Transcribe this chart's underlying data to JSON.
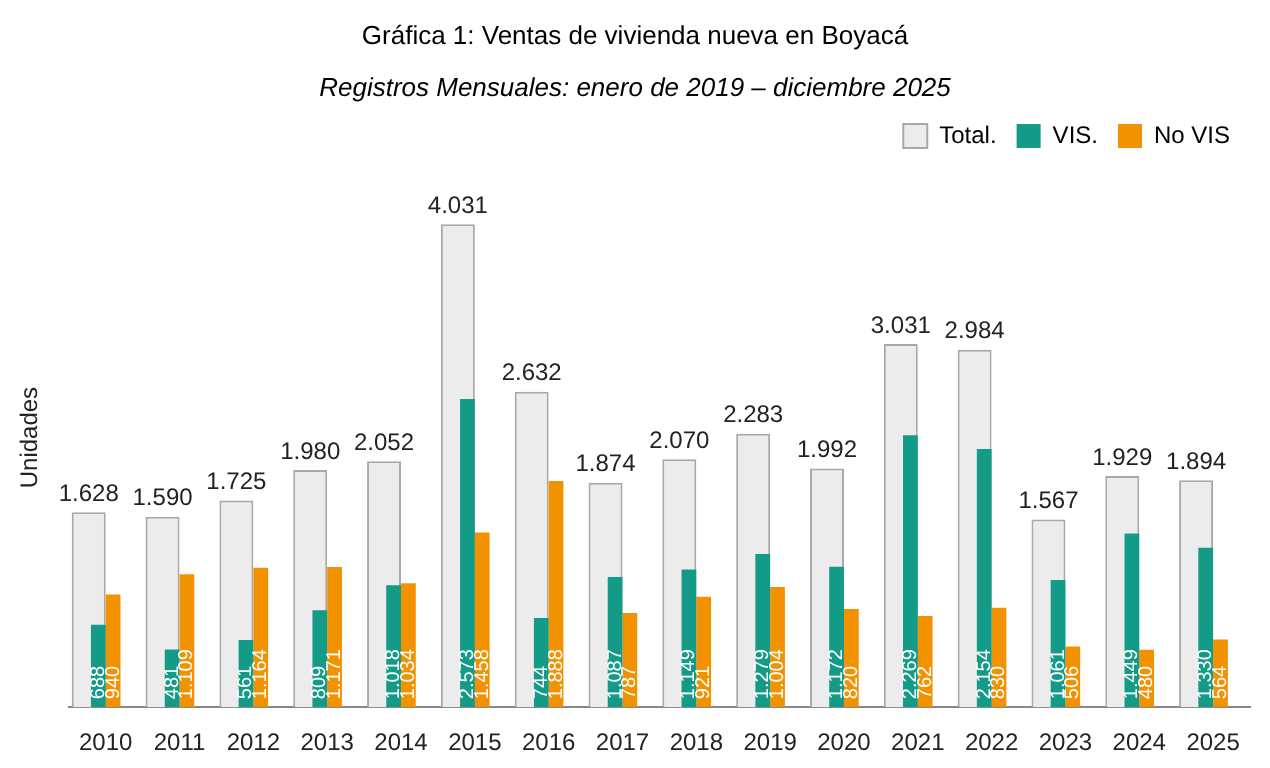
{
  "chart_data": {
    "type": "bar",
    "title": "Gráfica 1: Ventas de vivienda nueva en Boyacá",
    "subtitle": "Registros Mensuales: enero de 2019 – diciembre 2025",
    "ylabel": "Unidades",
    "categories": [
      "2010",
      "2011",
      "2012",
      "2013",
      "2014",
      "2015",
      "2016",
      "2017",
      "2018",
      "2019",
      "2020",
      "2021",
      "2022",
      "2023",
      "2024",
      "2025"
    ],
    "series": [
      {
        "name": "Total.",
        "color": "#ececec",
        "values": [
          1628,
          1590,
          1725,
          1980,
          2052,
          4031,
          2632,
          1874,
          2070,
          2283,
          1992,
          3031,
          2984,
          1567,
          1929,
          1894
        ],
        "value_labels": [
          "1.628",
          "1.590",
          "1.725",
          "1.980",
          "2.052",
          "4.031",
          "2.632",
          "1.874",
          "2.070",
          "2.283",
          "1.992",
          "3.031",
          "2.984",
          "1.567",
          "1.929",
          "1.894"
        ]
      },
      {
        "name": "VIS.",
        "color": "#149b88",
        "values": [
          688,
          481,
          561,
          809,
          1018,
          2573,
          744,
          1087,
          1149,
          1279,
          1172,
          2269,
          2154,
          1061,
          1449,
          1330
        ],
        "value_labels": [
          "688",
          "481",
          "561",
          "809",
          "1.018",
          "2.573",
          "744",
          "1.087",
          "1.149",
          "1.279",
          "1.172",
          "2.269",
          "2.154",
          "1.061",
          "1.449",
          "1.330"
        ]
      },
      {
        "name": "No VIS",
        "color": "#f39200",
        "values": [
          940,
          1109,
          1164,
          1171,
          1034,
          1458,
          1888,
          787,
          921,
          1004,
          820,
          762,
          830,
          506,
          480,
          564
        ],
        "value_labels": [
          "940",
          "1.109",
          "1.164",
          "1.171",
          "1.034",
          "1.458",
          "1.888",
          "787",
          "921",
          "1.004",
          "820",
          "762",
          "830",
          "506",
          "480",
          "564"
        ]
      }
    ],
    "legend": "top right",
    "grid": false,
    "tick_labels": "x"
  }
}
